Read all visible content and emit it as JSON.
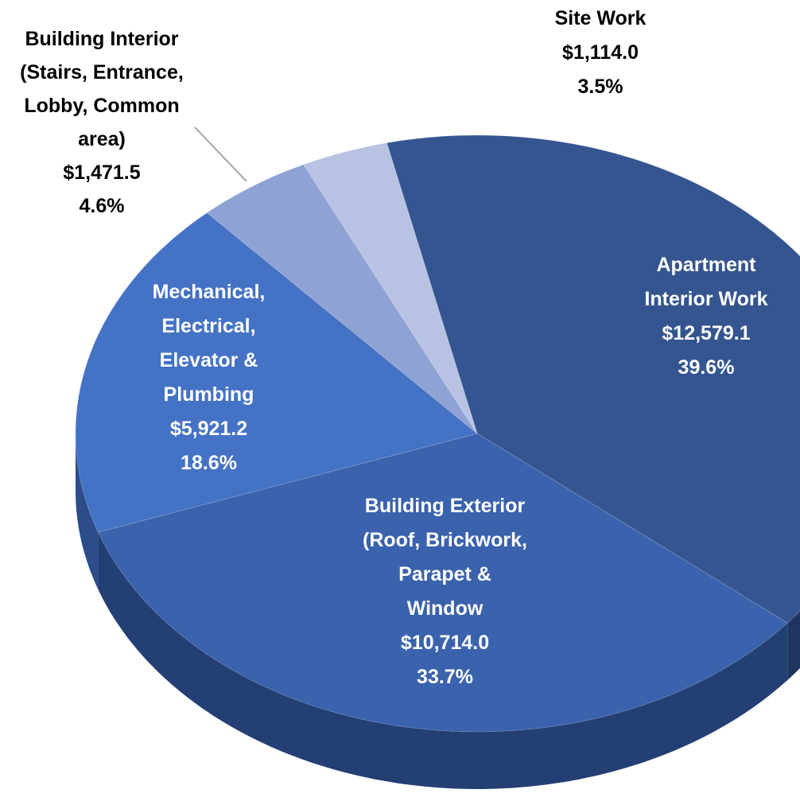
{
  "chart_data": {
    "type": "pie",
    "categories": [
      "Apartment Interior Work",
      "Building Exterior (Roof, Brickwork, Parapet & Window",
      "Mechanical, Electrical, Elevator & Plumbing",
      "Building Interior (Stairs, Entrance, Lobby, Common area)",
      "Site Work"
    ],
    "values": [
      12579.1,
      10714.0,
      5921.2,
      1471.5,
      1114.0
    ],
    "value_labels": [
      "$12,579.1",
      "$10,714.0",
      "$5,921.2",
      "$1,471.5",
      "$1,114.0"
    ],
    "percentages": [
      39.6,
      33.7,
      18.6,
      4.6,
      3.5
    ],
    "percentage_labels": [
      "39.6%",
      "33.7%",
      "18.6%",
      "4.6%",
      "3.5%"
    ],
    "colors": [
      "#34558f",
      "#3a62ad",
      "#4472c4",
      "#8fa2d4",
      "#b8c3e3"
    ],
    "side_colors": [
      "#1f3560",
      "#243f73",
      "#2c4d8a",
      "#5a6f9e",
      "#7d8bb3"
    ]
  }
}
